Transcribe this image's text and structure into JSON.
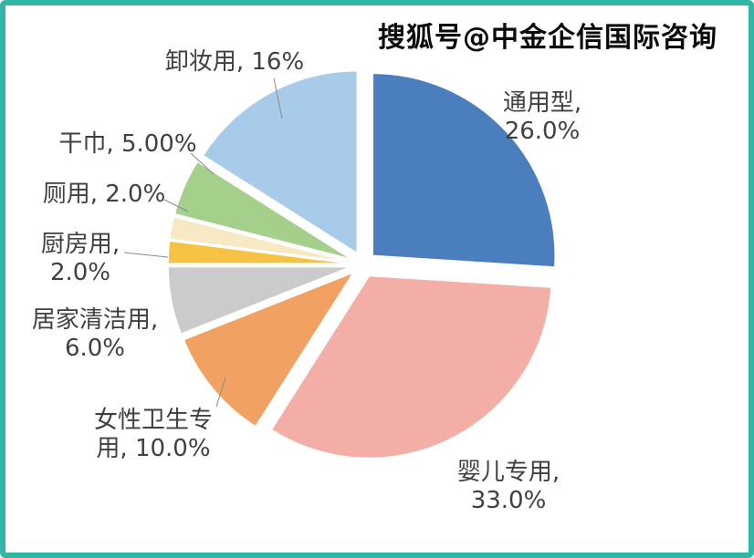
{
  "watermark": {
    "text": "搜狐号@中金企信国际咨询"
  },
  "chart_data": {
    "type": "pie",
    "title": "",
    "legend": "none",
    "direction": "clockwise",
    "start_angle_deg": 0,
    "exploded": true,
    "background": "#FFFFFF",
    "frame_border_color": "#31B5A5",
    "label_color": "#404040",
    "slices": [
      {
        "name": "通用型",
        "value": 26.0,
        "pct_label": "26.0%",
        "color": "#4A7EBD",
        "label_lines": [
          "通用型,",
          "26.0%"
        ]
      },
      {
        "name": "婴儿专用",
        "value": 33.0,
        "pct_label": "33.0%",
        "color": "#F4AEA8",
        "label_lines": [
          "婴儿专用,",
          "33.0%"
        ]
      },
      {
        "name": "女性卫生专用",
        "value": 10.0,
        "pct_label": "10.0%",
        "color": "#F1A263",
        "label_lines": [
          "女性卫生专",
          "用, 10.0%"
        ]
      },
      {
        "name": "居家清洁用",
        "value": 6.0,
        "pct_label": "6.0%",
        "color": "#CBCBCB",
        "label_lines": [
          "居家清洁用,",
          "6.0%"
        ]
      },
      {
        "name": "厨房用",
        "value": 2.0,
        "pct_label": "2.0%",
        "color": "#F6C244",
        "label_lines": [
          "厨房用,",
          "2.0%"
        ]
      },
      {
        "name": "厕用",
        "value": 2.0,
        "pct_label": "2.0%",
        "color": "#F7E9C3",
        "label_lines": [
          "厕用, 2.0%"
        ]
      },
      {
        "name": "干巾",
        "value": 5.0,
        "pct_label": "5.00%",
        "color": "#A4D08C",
        "label_lines": [
          "干巾, 5.00%"
        ]
      },
      {
        "name": "卸妆用",
        "value": 16.0,
        "pct_label": "16%",
        "color": "#A8CBEA",
        "label_lines": [
          "卸妆用, 16%"
        ]
      }
    ]
  }
}
